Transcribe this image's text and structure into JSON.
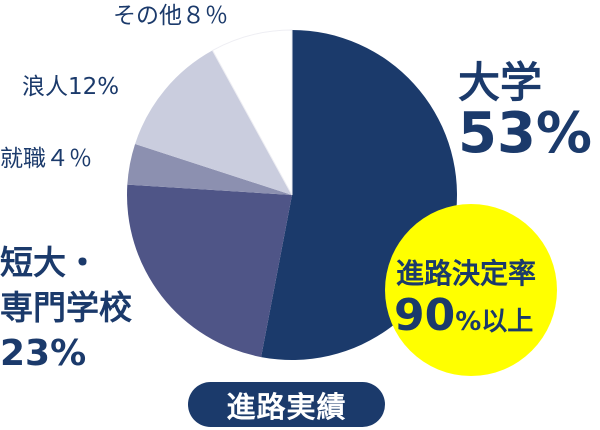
{
  "chart_data": {
    "type": "pie",
    "title": "進路実績",
    "start": "top",
    "direction": "clockwise",
    "slices": [
      {
        "label": "大学",
        "value": 53,
        "value_label": "53%",
        "color": "#1b3a6b"
      },
      {
        "label": "短大・専門学校",
        "value": 23,
        "value_label": "23%",
        "color": "#4f5587"
      },
      {
        "label": "就職",
        "value": 4,
        "value_label": "４％",
        "color": "#8c90b0"
      },
      {
        "label": "浪人",
        "value": 12,
        "value_label": "12%",
        "color": "#cacdde"
      },
      {
        "label": "その他",
        "value": 8,
        "value_label": "８％",
        "color": "#ffffff"
      }
    ],
    "callout": {
      "line1": "進路決定率",
      "line2_num": "90",
      "line2_unit": "%以上",
      "color": "#ffff00"
    }
  },
  "labels": {
    "other": "その他８％",
    "ronin": "浪人12%",
    "job": "就職４％",
    "college_line1": "短大・",
    "college_line2": "専門学校",
    "college_pct": "23%",
    "univ": "大学",
    "univ_pct": "53%"
  }
}
